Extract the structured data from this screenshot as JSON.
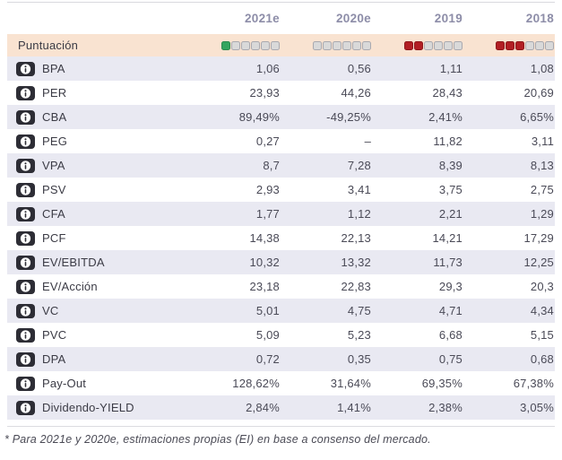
{
  "header": {
    "columns": [
      "2021e",
      "2020e",
      "2019",
      "2018"
    ]
  },
  "score_row": {
    "label": "Puntuación",
    "total_squares": 6,
    "ratings": [
      {
        "column": "2021e",
        "filled": 1,
        "color": "green"
      },
      {
        "column": "2020e",
        "filled": 0,
        "color": "none"
      },
      {
        "column": "2019",
        "filled": 2,
        "color": "red"
      },
      {
        "column": "2018",
        "filled": 3,
        "color": "red"
      }
    ]
  },
  "table": {
    "rows": [
      {
        "label": "BPA",
        "values": [
          "1,06",
          "0,56",
          "1,11",
          "1,08"
        ]
      },
      {
        "label": "PER",
        "values": [
          "23,93",
          "44,26",
          "28,43",
          "20,69"
        ]
      },
      {
        "label": "CBA",
        "values": [
          "89,49%",
          "-49,25%",
          "2,41%",
          "6,65%"
        ]
      },
      {
        "label": "PEG",
        "values": [
          "0,27",
          "–",
          "11,82",
          "3,11"
        ]
      },
      {
        "label": "VPA",
        "values": [
          "8,7",
          "7,28",
          "8,39",
          "8,13"
        ]
      },
      {
        "label": "PSV",
        "values": [
          "2,93",
          "3,41",
          "3,75",
          "2,75"
        ]
      },
      {
        "label": "CFA",
        "values": [
          "1,77",
          "1,12",
          "2,21",
          "1,29"
        ]
      },
      {
        "label": "PCF",
        "values": [
          "14,38",
          "22,13",
          "14,21",
          "17,29"
        ]
      },
      {
        "label": "EV/EBITDA",
        "values": [
          "10,32",
          "13,32",
          "11,73",
          "12,25"
        ]
      },
      {
        "label": "EV/Acción",
        "values": [
          "23,18",
          "22,83",
          "29,3",
          "20,3"
        ]
      },
      {
        "label": "VC",
        "values": [
          "5,01",
          "4,75",
          "4,71",
          "4,34"
        ]
      },
      {
        "label": "PVC",
        "values": [
          "5,09",
          "5,23",
          "6,68",
          "5,15"
        ]
      },
      {
        "label": "DPA",
        "values": [
          "0,72",
          "0,35",
          "0,75",
          "0,68"
        ]
      },
      {
        "label": "Pay-Out",
        "values": [
          "128,62%",
          "31,64%",
          "69,35%",
          "67,38%"
        ]
      },
      {
        "label": "Dividendo-YIELD",
        "values": [
          "2,84%",
          "1,41%",
          "2,38%",
          "3,05%"
        ]
      }
    ]
  },
  "footnote": "* Para 2021e y 2020e, estimaciones propias (EI) en base a consenso del mercado.",
  "colors": {
    "score_green_fill": "#33a55f",
    "score_green_border": "#2a8a4f",
    "score_red_fill": "#b21f24",
    "score_red_border": "#8e181c",
    "score_empty_fill": "#d9d9d9",
    "score_empty_border": "#a9a9af",
    "score_row_bg": "#f9e3d1",
    "alt_row_bg": "#e9e9f2",
    "header_text": "#8d8da8"
  }
}
